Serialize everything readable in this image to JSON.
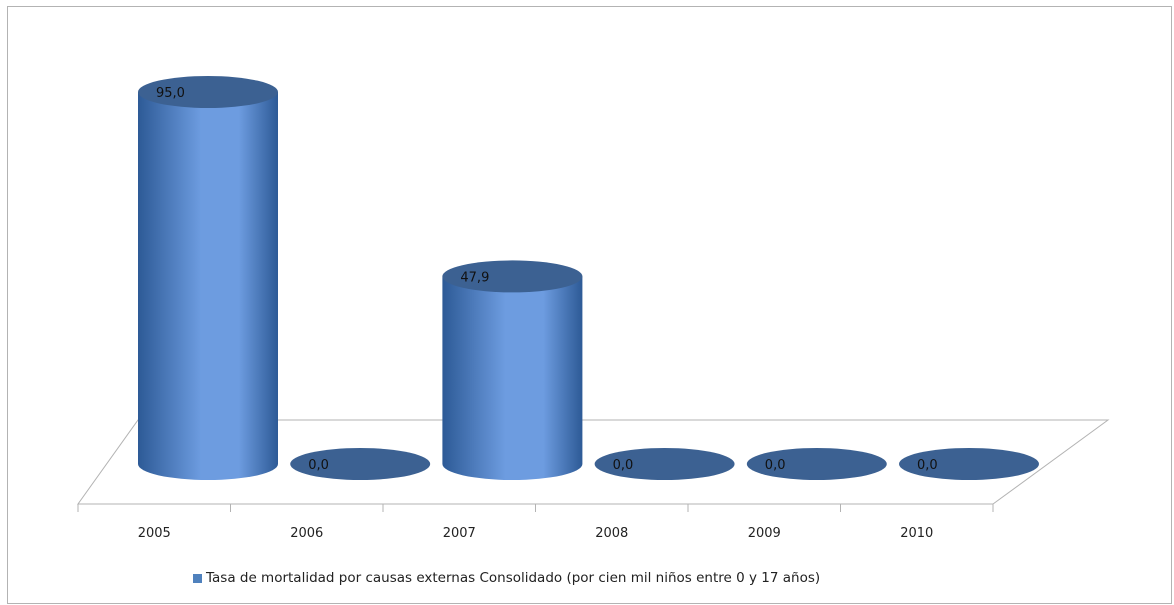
{
  "chart_data": {
    "type": "bar",
    "style": "3d-cylinder",
    "categories": [
      "2005",
      "2006",
      "2007",
      "2008",
      "2009",
      "2010"
    ],
    "series": [
      {
        "name": "Tasa de mortalidad por causas externas Consolidado (por cien mil niños entre 0 y 17 años)",
        "values": [
          95.0,
          0.0,
          47.9,
          0.0,
          0.0,
          0.0
        ],
        "data_labels": [
          "95,0",
          "0,0",
          "47,9",
          "0,0",
          "0,0",
          "0,0"
        ]
      }
    ],
    "ylim": [
      0,
      95
    ],
    "grid": false,
    "legend_position": "bottom"
  },
  "colors": {
    "bar_body_dark": "#2d5a96",
    "bar_body_light": "#6d9ce0",
    "bar_top": "#3c6192",
    "floor_line": "#b3b3b3",
    "frame_border": "#b3b3b3",
    "legend_swatch": "#4f81bd"
  }
}
